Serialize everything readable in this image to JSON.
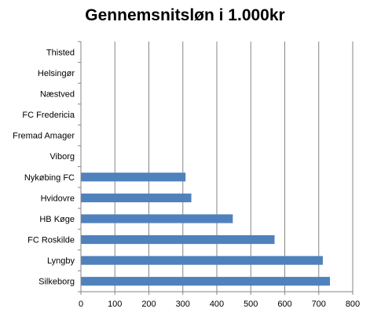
{
  "chart_data": {
    "type": "bar",
    "orientation": "horizontal",
    "title": "Gennemsnitsløn i 1.000kr",
    "xlabel": "",
    "ylabel": "",
    "categories": [
      "Thisted",
      "Helsingør",
      "Næstved",
      "FC Fredericia",
      "Fremad Amager",
      "Viborg",
      "Nykøbing FC",
      "Hvidovre",
      "HB Køge",
      "FC Roskilde",
      "Lyngby",
      "Silkeborg"
    ],
    "values": [
      null,
      null,
      null,
      null,
      null,
      null,
      308,
      325,
      447,
      570,
      712,
      733
    ],
    "xlim": [
      0,
      800
    ],
    "xticks": [
      0,
      100,
      200,
      300,
      400,
      500,
      600,
      700,
      800
    ],
    "grid": true,
    "legend": "none",
    "bar_color": "#4F81BD"
  }
}
